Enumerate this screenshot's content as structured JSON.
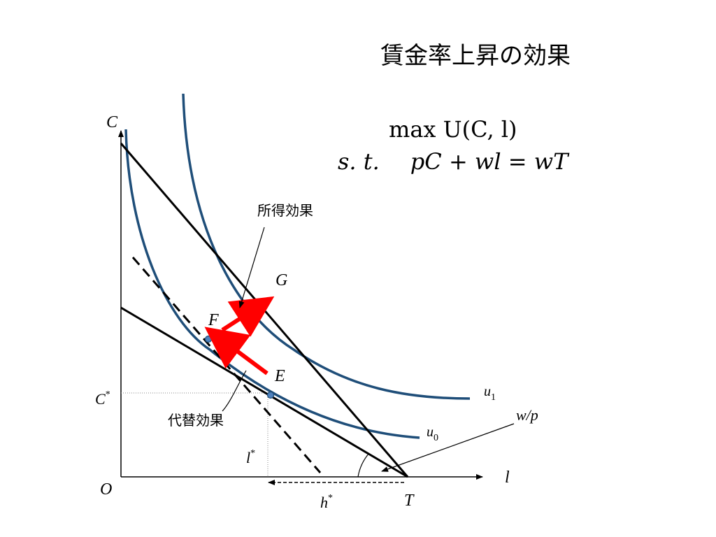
{
  "title": "賃金率上昇の効果",
  "problem": {
    "objective": "max U(C, l)",
    "constraint_prefix": "s. t.",
    "constraint": "pC + wl = wT"
  },
  "labels": {
    "income_effect": "所得効果",
    "substitution_effect": "代替効果",
    "axis_y": "C",
    "axis_x": "l",
    "origin": "O",
    "point_g": "G",
    "point_f": "F",
    "point_e": "E",
    "point_t": "T",
    "c_star_base": "C",
    "l_star_base": "l",
    "h_star_base": "h",
    "star": "*",
    "u1_base": "u",
    "u1_sub": "1",
    "u0_base": "u",
    "u0_sub": "0",
    "slope": "w/p"
  },
  "colors": {
    "curve": "#1f4e79",
    "line": "#000000",
    "arrow": "#ff0000",
    "point": "#4f81bd"
  }
}
